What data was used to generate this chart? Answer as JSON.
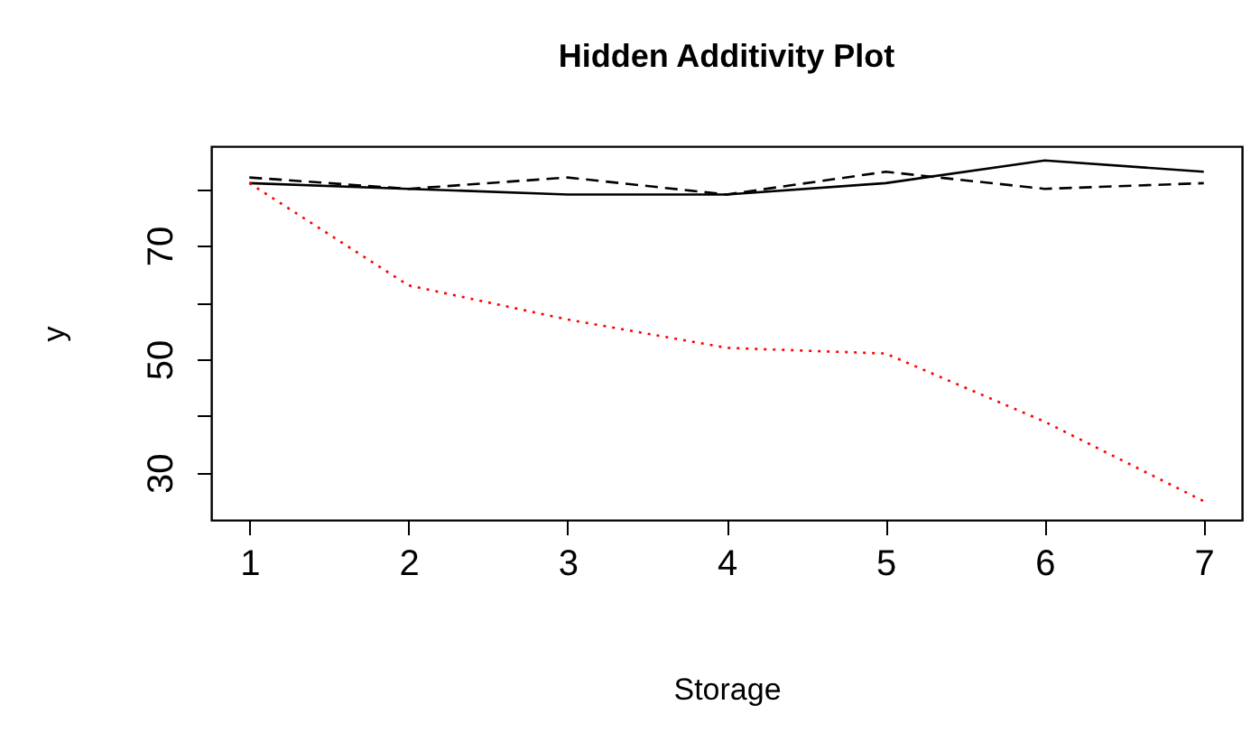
{
  "chart_data": {
    "type": "line",
    "title": "Hidden Additivity Plot",
    "xlabel": "Storage",
    "ylabel": "y",
    "x": [
      1,
      2,
      3,
      4,
      5,
      6,
      7
    ],
    "series": [
      {
        "color": "#000000",
        "line_style": "solid",
        "values": [
          81,
          80,
          79,
          79,
          81,
          85,
          83
        ]
      },
      {
        "color": "#000000",
        "line_style": "dashed",
        "values": [
          82,
          80,
          82,
          79,
          83,
          80,
          81
        ]
      },
      {
        "color": "#ff0000",
        "line_style": "dotted",
        "values": [
          81,
          63,
          57,
          52,
          51,
          39,
          25
        ]
      }
    ],
    "xlim": [
      0.76,
      7.24
    ],
    "xticks": [
      1,
      2,
      3,
      4,
      5,
      6,
      7
    ],
    "ylim": [
      21.7,
      87.5
    ],
    "yticks": [
      30,
      {
        "value": 40,
        "label": null
      },
      50,
      {
        "value": 60,
        "label": null
      },
      70,
      {
        "value": 80,
        "label": null
      }
    ],
    "grid": false,
    "marker": "none"
  }
}
